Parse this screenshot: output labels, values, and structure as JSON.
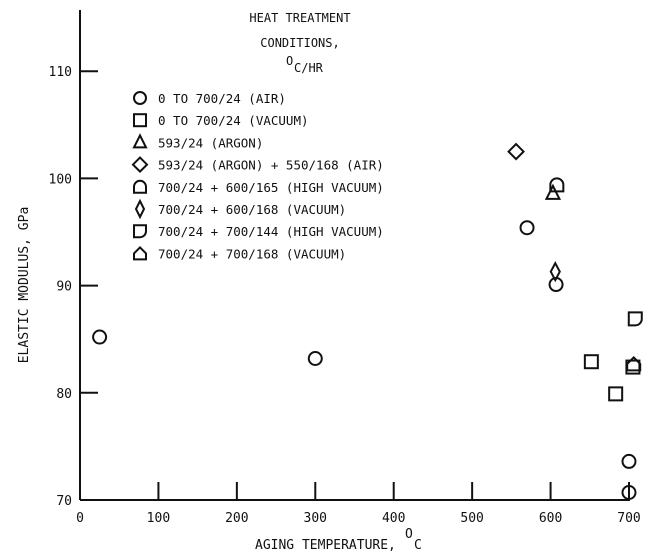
{
  "chart_data": {
    "type": "scatter",
    "xlabel": "AGING TEMPERATURE, ",
    "xlabel_unit": "C",
    "xlabel_unit_sup": "O",
    "ylabel": "ELASTIC MODULUS, GPa",
    "xlim": [
      0,
      700
    ],
    "ylim": [
      70,
      115
    ],
    "x_ticks": [
      0,
      100,
      200,
      300,
      400,
      500,
      600,
      700
    ],
    "y_ticks": [
      70,
      80,
      90,
      100,
      110
    ],
    "grid": false,
    "legend": {
      "title_lines": [
        "HEAT TREATMENT",
        "CONDITIONS,"
      ],
      "unit_sup": "O",
      "unit": "C/HR",
      "placement": "top-left"
    },
    "series": [
      {
        "name": "0 TO 700/24 (AIR)",
        "marker": "circle",
        "points": [
          [
            25,
            85.2
          ],
          [
            300,
            83.2
          ],
          [
            570,
            95.4
          ],
          [
            607,
            90.1
          ],
          [
            700,
            73.6
          ],
          [
            700,
            70.7
          ]
        ]
      },
      {
        "name": "0 TO 700/24 (VACUUM)",
        "marker": "square",
        "points": [
          [
            652,
            82.9
          ],
          [
            683,
            79.9
          ],
          [
            705,
            82.4
          ]
        ]
      },
      {
        "name": "593/24 (ARGON)",
        "marker": "triangle",
        "points": [
          [
            603,
            98.6
          ]
        ]
      },
      {
        "name": "593/24 (ARGON) + 550/168 (AIR)",
        "marker": "diamond",
        "points": [
          [
            556,
            102.5
          ]
        ]
      },
      {
        "name": "700/24 + 600/165 (HIGH VACUUM)",
        "marker": "half-circle-top",
        "points": [
          [
            608,
            99.4
          ]
        ]
      },
      {
        "name": "700/24 + 600/168 (VACUUM)",
        "marker": "thin-diamond",
        "points": [
          [
            606,
            91.3
          ]
        ]
      },
      {
        "name": "700/24 + 700/144 (HIGH VACUUM)",
        "marker": "half-square-d",
        "points": [
          [
            708,
            86.9
          ]
        ]
      },
      {
        "name": "700/24 + 700/168 (VACUUM)",
        "marker": "half-circle-pentagon",
        "points": [
          [
            706,
            82.7
          ]
        ]
      }
    ]
  }
}
